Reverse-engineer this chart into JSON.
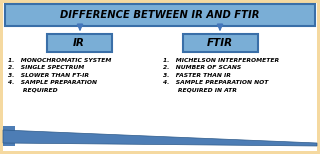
{
  "title": "DIFFERENCE BETWEEN IR AND FTIR",
  "ir_label": "IR",
  "ftir_label": "FTIR",
  "ir_points": [
    "1.   MONOCHROMATIC SYSTEM",
    "2.   SINGLE SPECTRUM",
    "3.   SLOWER THAN FT-IR",
    "4.   SAMPLE PREPARATION\n       REQUIRED"
  ],
  "ftir_points": [
    "1.   MICHELSON INTERFEROMETER",
    "2.   NUMBER OF SCANS",
    "3.   FASTER THAN IR",
    "4.   SAMPLE PREPARATION NOT\n       REQUIRED IN ATR"
  ],
  "bg_outer": "#f5d9a0",
  "bg_inner": "#ffffff",
  "box_face": "#7aaed6",
  "box_edge": "#3a6fa8",
  "arrow_color": "#4477bb",
  "text_color": "#000000",
  "bar_face": "#4d7db5",
  "bar_edge": "#2d5a8a",
  "title_fontsize": 7.2,
  "label_fontsize": 7.5,
  "point_fontsize": 4.3
}
